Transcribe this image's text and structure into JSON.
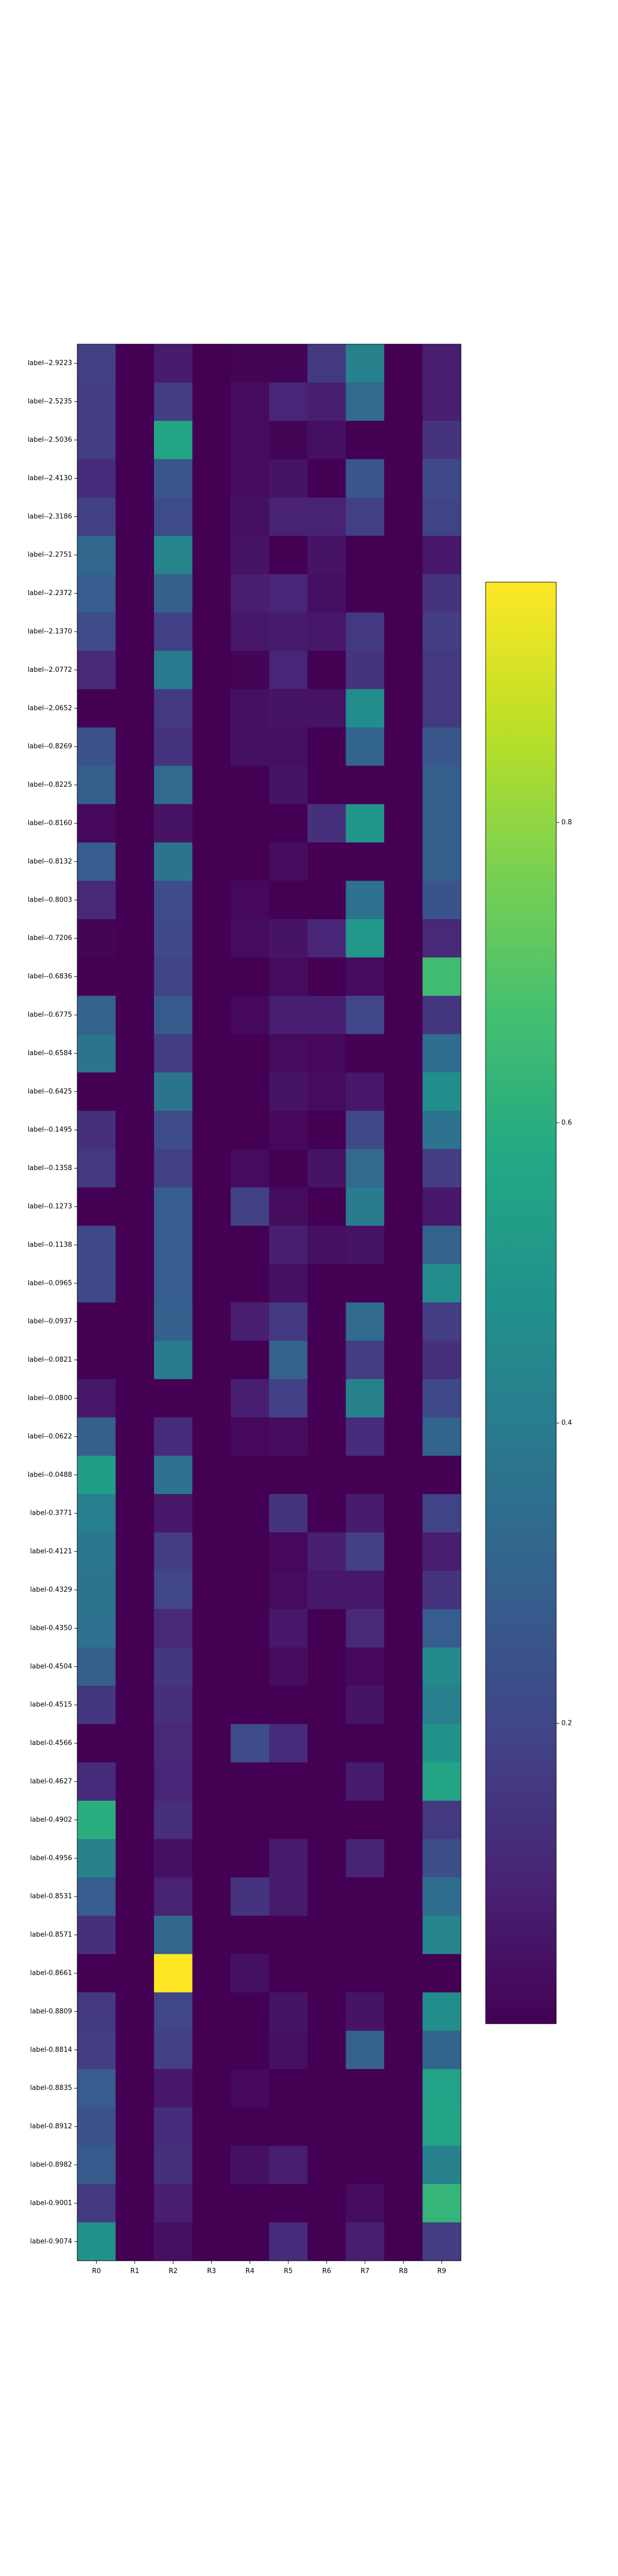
{
  "chart_data": {
    "type": "heatmap",
    "title": "",
    "xlabel": "",
    "ylabel": "",
    "colormap": "viridis",
    "vmin": 0,
    "vmax": 0.96,
    "colorbar_ticks": [
      "0.2",
      "0.4",
      "0.6",
      "0.8"
    ],
    "colorbar_tick_values": [
      0.2,
      0.4,
      0.6,
      0.8
    ],
    "columns": [
      "R0",
      "R1",
      "R2",
      "R3",
      "R4",
      "R5",
      "R6",
      "R7",
      "R8",
      "R9"
    ],
    "rows": [
      "label--2.9223",
      "label--2.5235",
      "label--2.5036",
      "label--2.4130",
      "label--2.3186",
      "label--2.2751",
      "label--2.2372",
      "label--2.1370",
      "label--2.0772",
      "label--2.0652",
      "label--0.8269",
      "label--0.8225",
      "label--0.8160",
      "label--0.8132",
      "label--0.8003",
      "label--0.7206",
      "label--0.6836",
      "label--0.6775",
      "label--0.6584",
      "label--0.6425",
      "label--0.1495",
      "label--0.1358",
      "label--0.1273",
      "label--0.1138",
      "label--0.0965",
      "label--0.0937",
      "label--0.0821",
      "label--0.0800",
      "label--0.0622",
      "label--0.0488",
      "label-0.3771",
      "label-0.4121",
      "label-0.4329",
      "label-0.4350",
      "label-0.4504",
      "label-0.4515",
      "label-0.4566",
      "label-0.4627",
      "label-0.4902",
      "label-0.4956",
      "label-0.8531",
      "label-0.8571",
      "label-0.8661",
      "label-0.8809",
      "label-0.8814",
      "label-0.8835",
      "label-0.8912",
      "label-0.8982",
      "label-0.9001",
      "label-0.9074"
    ],
    "values": [
      [
        0.18,
        0.0,
        0.07,
        0.0,
        0.01,
        0.01,
        0.16,
        0.42,
        0.0,
        0.08
      ],
      [
        0.17,
        0.0,
        0.17,
        0.0,
        0.03,
        0.1,
        0.08,
        0.33,
        0.0,
        0.08
      ],
      [
        0.17,
        0.0,
        0.56,
        0.0,
        0.03,
        0.01,
        0.04,
        0.0,
        0.0,
        0.14
      ],
      [
        0.12,
        0.0,
        0.26,
        0.0,
        0.03,
        0.05,
        0.0,
        0.26,
        0.0,
        0.21
      ],
      [
        0.18,
        0.0,
        0.22,
        0.0,
        0.04,
        0.09,
        0.09,
        0.18,
        0.0,
        0.19
      ],
      [
        0.32,
        0.0,
        0.43,
        0.0,
        0.05,
        0.0,
        0.05,
        0.0,
        0.0,
        0.06
      ],
      [
        0.28,
        0.0,
        0.29,
        0.0,
        0.08,
        0.1,
        0.04,
        0.0,
        0.0,
        0.14
      ],
      [
        0.22,
        0.0,
        0.18,
        0.0,
        0.06,
        0.07,
        0.06,
        0.16,
        0.0,
        0.17
      ],
      [
        0.11,
        0.0,
        0.39,
        0.0,
        0.01,
        0.1,
        0.0,
        0.14,
        0.0,
        0.16
      ],
      [
        0.0,
        0.0,
        0.16,
        0.0,
        0.04,
        0.05,
        0.05,
        0.46,
        0.0,
        0.16
      ],
      [
        0.24,
        0.0,
        0.14,
        0.0,
        0.04,
        0.04,
        0.0,
        0.31,
        0.0,
        0.26
      ],
      [
        0.29,
        0.0,
        0.33,
        0.0,
        0.0,
        0.05,
        0.0,
        0.0,
        0.0,
        0.29
      ],
      [
        0.02,
        0.0,
        0.05,
        0.0,
        0.0,
        0.0,
        0.13,
        0.5,
        0.0,
        0.29
      ],
      [
        0.28,
        0.0,
        0.37,
        0.0,
        0.0,
        0.03,
        0.0,
        0.0,
        0.0,
        0.29
      ],
      [
        0.11,
        0.0,
        0.22,
        0.0,
        0.02,
        0.0,
        0.0,
        0.36,
        0.0,
        0.25
      ],
      [
        0.01,
        0.0,
        0.21,
        0.0,
        0.03,
        0.05,
        0.1,
        0.51,
        0.0,
        0.11
      ],
      [
        0.0,
        0.0,
        0.19,
        0.0,
        0.0,
        0.03,
        0.0,
        0.03,
        0.0,
        0.66
      ],
      [
        0.3,
        0.0,
        0.27,
        0.0,
        0.02,
        0.08,
        0.08,
        0.2,
        0.0,
        0.15
      ],
      [
        0.37,
        0.0,
        0.17,
        0.0,
        0.0,
        0.03,
        0.02,
        0.0,
        0.0,
        0.34
      ],
      [
        0.0,
        0.0,
        0.37,
        0.0,
        0.0,
        0.05,
        0.03,
        0.06,
        0.0,
        0.47
      ],
      [
        0.13,
        0.0,
        0.22,
        0.0,
        0.0,
        0.02,
        0.0,
        0.21,
        0.0,
        0.36
      ],
      [
        0.16,
        0.0,
        0.18,
        0.0,
        0.03,
        0.0,
        0.05,
        0.33,
        0.0,
        0.17
      ],
      [
        0.0,
        0.0,
        0.28,
        0.0,
        0.18,
        0.03,
        0.0,
        0.4,
        0.0,
        0.06
      ],
      [
        0.21,
        0.0,
        0.28,
        0.0,
        0.0,
        0.08,
        0.04,
        0.05,
        0.0,
        0.3
      ],
      [
        0.21,
        0.0,
        0.28,
        0.0,
        0.0,
        0.04,
        0.0,
        0.0,
        0.0,
        0.46
      ],
      [
        0.0,
        0.0,
        0.29,
        0.0,
        0.08,
        0.16,
        0.0,
        0.33,
        0.0,
        0.17
      ],
      [
        0.0,
        0.0,
        0.4,
        0.0,
        0.0,
        0.3,
        0.0,
        0.17,
        0.0,
        0.13
      ],
      [
        0.06,
        0.0,
        0.0,
        0.0,
        0.08,
        0.18,
        0.0,
        0.42,
        0.0,
        0.21
      ],
      [
        0.29,
        0.0,
        0.12,
        0.0,
        0.02,
        0.03,
        0.0,
        0.12,
        0.0,
        0.31
      ],
      [
        0.53,
        0.0,
        0.36,
        0.0,
        0.0,
        0.0,
        0.0,
        0.0,
        0.0,
        0.0
      ],
      [
        0.41,
        0.0,
        0.06,
        0.0,
        0.0,
        0.14,
        0.0,
        0.07,
        0.0,
        0.19
      ],
      [
        0.38,
        0.0,
        0.17,
        0.0,
        0.0,
        0.02,
        0.08,
        0.18,
        0.0,
        0.08
      ],
      [
        0.37,
        0.0,
        0.2,
        0.0,
        0.0,
        0.03,
        0.06,
        0.06,
        0.0,
        0.14
      ],
      [
        0.36,
        0.0,
        0.11,
        0.0,
        0.0,
        0.06,
        0.0,
        0.11,
        0.0,
        0.28
      ],
      [
        0.29,
        0.0,
        0.15,
        0.0,
        0.0,
        0.03,
        0.0,
        0.02,
        0.0,
        0.45
      ],
      [
        0.15,
        0.0,
        0.13,
        0.0,
        0.0,
        0.0,
        0.0,
        0.05,
        0.0,
        0.41
      ],
      [
        0.0,
        0.0,
        0.11,
        0.0,
        0.22,
        0.12,
        0.0,
        0.0,
        0.0,
        0.49
      ],
      [
        0.12,
        0.0,
        0.1,
        0.0,
        0.0,
        0.0,
        0.0,
        0.07,
        0.0,
        0.56
      ],
      [
        0.6,
        0.0,
        0.13,
        0.0,
        0.0,
        0.0,
        0.0,
        0.0,
        0.0,
        0.16
      ],
      [
        0.42,
        0.0,
        0.04,
        0.0,
        0.0,
        0.07,
        0.0,
        0.09,
        0.0,
        0.23
      ],
      [
        0.28,
        0.0,
        0.09,
        0.0,
        0.14,
        0.07,
        0.0,
        0.0,
        0.0,
        0.34
      ],
      [
        0.13,
        0.0,
        0.32,
        0.0,
        0.0,
        0.0,
        0.0,
        0.0,
        0.0,
        0.43
      ],
      [
        0.0,
        0.0,
        0.96,
        0.0,
        0.04,
        0.0,
        0.0,
        0.0,
        0.0,
        0.0
      ],
      [
        0.16,
        0.0,
        0.2,
        0.0,
        0.0,
        0.05,
        0.0,
        0.05,
        0.0,
        0.47
      ],
      [
        0.17,
        0.0,
        0.18,
        0.0,
        0.0,
        0.04,
        0.0,
        0.3,
        0.0,
        0.31
      ],
      [
        0.28,
        0.0,
        0.06,
        0.0,
        0.02,
        0.0,
        0.0,
        0.0,
        0.0,
        0.55
      ],
      [
        0.24,
        0.0,
        0.12,
        0.0,
        0.0,
        0.0,
        0.0,
        0.0,
        0.0,
        0.56
      ],
      [
        0.27,
        0.0,
        0.13,
        0.0,
        0.04,
        0.08,
        0.0,
        0.0,
        0.0,
        0.42
      ],
      [
        0.16,
        0.0,
        0.08,
        0.0,
        0.0,
        0.0,
        0.0,
        0.03,
        0.0,
        0.63
      ],
      [
        0.48,
        0.0,
        0.04,
        0.0,
        0.0,
        0.12,
        0.0,
        0.08,
        0.0,
        0.17
      ]
    ]
  }
}
